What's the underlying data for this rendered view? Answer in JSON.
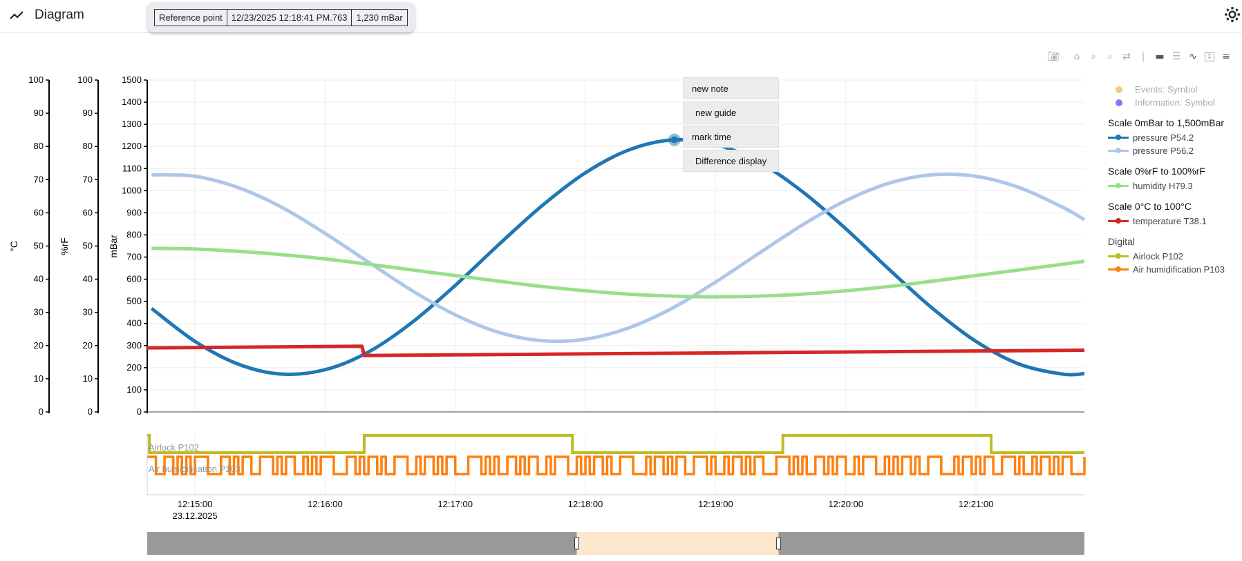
{
  "header": {
    "title": "Diagram",
    "icon": "chart-line-icon",
    "settings_icon": "gear-icon"
  },
  "tooltip": {
    "label": "Reference point",
    "timestamp": "12/23/2025 12:18:41 PM.763",
    "value": "1,230 mBar"
  },
  "toolbar": {
    "icons": [
      "camera-icon",
      "home-icon",
      "zoom-in-icon",
      "zoom-out-icon",
      "pan-icon",
      "spike-icon",
      "hover-closest-icon",
      "hover-compare-icon",
      "line-icon",
      "scale-icon",
      "stacked-lines-icon"
    ]
  },
  "context_menu": {
    "items": [
      "new note",
      "new guide",
      "mark time",
      "Difference display"
    ]
  },
  "legend": {
    "symbols": [
      {
        "label": "Events: Symbol",
        "color": "#f5c97c"
      },
      {
        "label": "Information: Symbol",
        "color": "#7b7bf5"
      }
    ],
    "groups": [
      {
        "title": "Scale 0mBar to 1,500mBar",
        "items": [
          {
            "label": "pressure P54.2",
            "color": "#1f77b4"
          },
          {
            "label": "pressure P56.2",
            "color": "#aec7e8"
          }
        ]
      },
      {
        "title": "Scale 0%rF to 100%rF",
        "items": [
          {
            "label": "humidity H79.3",
            "color": "#98df8a"
          }
        ]
      },
      {
        "title": "Scale 0°C to 100°C",
        "items": [
          {
            "label": "temperature T38.1",
            "color": "#d62728"
          }
        ]
      },
      {
        "title": "Digital",
        "items": [
          {
            "label": "Airlock P102",
            "color": "#bcbd22"
          },
          {
            "label": "Air humidification P103",
            "color": "#ff7f0e"
          }
        ]
      }
    ]
  },
  "chart_data": {
    "type": "line",
    "x_range": [
      "12:14:38",
      "12:21:50"
    ],
    "x_ticks": [
      "12:15:00",
      "12:16:00",
      "12:17:00",
      "12:18:00",
      "12:19:00",
      "12:20:00",
      "12:21:00"
    ],
    "x_date_label": "23.12.2025",
    "grid": true,
    "legend_position": "right",
    "axes": [
      {
        "id": "mbar",
        "label": "mBar",
        "range": [
          0,
          1500
        ],
        "ticks": [
          0,
          100,
          200,
          300,
          400,
          500,
          600,
          700,
          800,
          900,
          1000,
          1100,
          1200,
          1300,
          1400,
          1500
        ]
      },
      {
        "id": "rf",
        "label": "%rF",
        "range": [
          0,
          100
        ],
        "ticks": [
          0,
          10,
          20,
          30,
          40,
          50,
          60,
          70,
          80,
          90,
          100
        ]
      },
      {
        "id": "c",
        "label": "°C",
        "range": [
          0,
          100
        ],
        "ticks": [
          0,
          10,
          20,
          30,
          40,
          50,
          60,
          70,
          80,
          90,
          100
        ]
      }
    ],
    "series": [
      {
        "name": "pressure P54.2",
        "axis": "mbar",
        "color": "#1f77b4",
        "points": [
          [
            "12:14:40",
            468
          ],
          [
            "12:15:00",
            319
          ],
          [
            "12:15:20",
            216
          ],
          [
            "12:15:40",
            171
          ],
          [
            "12:16:00",
            191
          ],
          [
            "12:16:20",
            271
          ],
          [
            "12:16:40",
            404
          ],
          [
            "12:17:00",
            572
          ],
          [
            "12:17:20",
            756
          ],
          [
            "12:17:40",
            932
          ],
          [
            "12:18:00",
            1081
          ],
          [
            "12:18:20",
            1184
          ],
          [
            "12:18:40",
            1229
          ],
          [
            "12:19:00",
            1209
          ],
          [
            "12:19:20",
            1129
          ],
          [
            "12:19:40",
            996
          ],
          [
            "12:20:00",
            828
          ],
          [
            "12:20:20",
            644
          ],
          [
            "12:20:40",
            468
          ],
          [
            "12:21:00",
            319
          ],
          [
            "12:21:20",
            216
          ],
          [
            "12:21:40",
            171
          ],
          [
            "12:21:50",
            173
          ]
        ]
      },
      {
        "name": "pressure P56.2",
        "axis": "mbar",
        "color": "#aec7e8",
        "points": [
          [
            "12:14:40",
            1072
          ],
          [
            "12:15:00",
            1065
          ],
          [
            "12:15:20",
            1014
          ],
          [
            "12:15:40",
            925
          ],
          [
            "12:16:00",
            807
          ],
          [
            "12:16:20",
            677
          ],
          [
            "12:16:40",
            549
          ],
          [
            "12:17:00",
            439
          ],
          [
            "12:17:20",
            360
          ],
          [
            "12:17:40",
            322
          ],
          [
            "12:18:00",
            329
          ],
          [
            "12:18:20",
            380
          ],
          [
            "12:18:40",
            469
          ],
          [
            "12:19:00",
            587
          ],
          [
            "12:19:20",
            717
          ],
          [
            "12:19:40",
            845
          ],
          [
            "12:20:00",
            955
          ],
          [
            "12:20:20",
            1034
          ],
          [
            "12:20:40",
            1072
          ],
          [
            "12:21:00",
            1065
          ],
          [
            "12:21:20",
            1014
          ],
          [
            "12:21:40",
            925
          ],
          [
            "12:21:50",
            869
          ]
        ]
      },
      {
        "name": "humidity H79.3",
        "axis": "rf",
        "color": "#98df8a",
        "points": [
          [
            "12:14:40",
            49.3
          ],
          [
            "12:15:00",
            49.1
          ],
          [
            "12:15:20",
            48.4
          ],
          [
            "12:15:40",
            47.4
          ],
          [
            "12:16:00",
            46.1
          ],
          [
            "12:16:20",
            44.5
          ],
          [
            "12:16:40",
            42.8
          ],
          [
            "12:17:00",
            41.1
          ],
          [
            "12:17:20",
            39.4
          ],
          [
            "12:17:40",
            37.8
          ],
          [
            "12:18:00",
            36.5
          ],
          [
            "12:18:20",
            35.5
          ],
          [
            "12:18:40",
            34.9
          ],
          [
            "12:19:00",
            34.7
          ],
          [
            "12:19:20",
            34.9
          ],
          [
            "12:19:40",
            35.5
          ],
          [
            "12:20:00",
            36.5
          ],
          [
            "12:20:20",
            37.8
          ],
          [
            "12:20:40",
            39.4
          ],
          [
            "12:21:00",
            41.1
          ],
          [
            "12:21:20",
            42.8
          ],
          [
            "12:21:40",
            44.5
          ],
          [
            "12:21:50",
            45.4
          ]
        ]
      },
      {
        "name": "temperature T38.1",
        "axis": "c",
        "color": "#d62728",
        "points": [
          [
            "12:14:38",
            19.3
          ],
          [
            "12:16:17",
            19.8
          ],
          [
            "12:16:18",
            17.0
          ],
          [
            "12:21:50",
            18.6
          ]
        ]
      }
    ],
    "digital": [
      {
        "name": "Airlock P102",
        "color": "#bcbd22",
        "transitions": [
          [
            "12:14:38",
            1
          ],
          [
            "12:14:39",
            0
          ],
          [
            "12:16:18",
            1
          ],
          [
            "12:17:54",
            0
          ],
          [
            "12:19:31",
            1
          ],
          [
            "12:21:07",
            0
          ]
        ]
      },
      {
        "name": "Air humidification P103",
        "color": "#ff7f0e",
        "sample_interval_s": 2,
        "start": "12:14:38",
        "states": "11001101010111000110101100111010110010101110001101011010011100101101011000111010100110101100101110010101101001110001011010110011101001011010110001110101001101011001011100101011010011100010110101100111010010110101100011101010011010"
      }
    ],
    "reference_point": {
      "time": "12:18:41",
      "value": 1230
    },
    "range_slider": {
      "selection": [
        "12:17:56",
        "12:19:29"
      ]
    }
  }
}
